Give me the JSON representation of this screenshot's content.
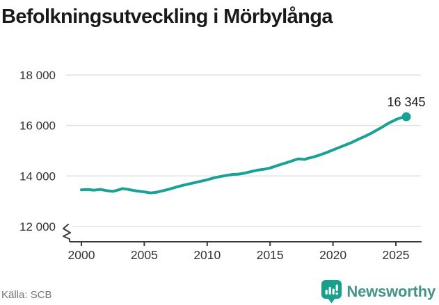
{
  "title": "Befolkningsutveckling i Mörbylånga",
  "source": {
    "text": "Källa: SCB"
  },
  "logo": {
    "text": "Newsworthy",
    "icon": "newsworthy-pin-barchart-icon"
  },
  "colors": {
    "line": "#17a295",
    "grid": "#e3e3e3",
    "axis": "#3a3a3a",
    "title_text": "#1a1a1a",
    "tick_text": "#333333",
    "end_label_text": "#1a1a1a",
    "source_text": "#757575",
    "logo_text": "#3f948b",
    "logo_icon": "#18a08c",
    "background": "#ffffff"
  },
  "chart_data": {
    "type": "line",
    "title": "Befolkningsutveckling i Mörbylånga",
    "xlabel": "",
    "ylabel": "",
    "grid": "horizontal",
    "legend": "none",
    "axis_break_below_min": true,
    "x_ticks": [
      2000,
      2005,
      2010,
      2015,
      2020,
      2025
    ],
    "x_tick_labels": [
      "2000",
      "2005",
      "2010",
      "2015",
      "2020",
      "2025"
    ],
    "y_ticks": [
      12000,
      14000,
      16000,
      18000
    ],
    "y_tick_labels": [
      "12 000",
      "14 000",
      "16 000",
      "18 000"
    ],
    "ylim": [
      12000,
      18000
    ],
    "xlim": [
      1999,
      2026.5
    ],
    "end_point": {
      "x": 2025.83,
      "y": 16345,
      "label": "16 345"
    },
    "series": [
      {
        "name": "Befolkning",
        "x": [
          2000,
          2000.5,
          2001,
          2001.5,
          2002,
          2002.5,
          2003,
          2003.25,
          2003.75,
          2004,
          2004.5,
          2005,
          2005.5,
          2006,
          2006.5,
          2007,
          2007.5,
          2008,
          2008.5,
          2009,
          2009.5,
          2010,
          2010.5,
          2011,
          2011.5,
          2012,
          2012.5,
          2013,
          2013.5,
          2014,
          2014.5,
          2015,
          2015.5,
          2016,
          2016.5,
          2017,
          2017.25,
          2017.75,
          2018,
          2018.5,
          2019,
          2019.5,
          2020,
          2020.5,
          2021,
          2021.5,
          2022,
          2022.5,
          2023,
          2023.5,
          2024,
          2024.25,
          2024.5,
          2024.75,
          2025,
          2025.25,
          2025.5,
          2025.83
        ],
        "y": [
          13450,
          13465,
          13440,
          13470,
          13420,
          13390,
          13455,
          13500,
          13465,
          13440,
          13400,
          13370,
          13330,
          13360,
          13420,
          13480,
          13555,
          13620,
          13680,
          13735,
          13795,
          13850,
          13920,
          13975,
          14020,
          14060,
          14075,
          14115,
          14175,
          14230,
          14265,
          14315,
          14400,
          14480,
          14555,
          14640,
          14680,
          14655,
          14700,
          14760,
          14840,
          14930,
          15030,
          15130,
          15230,
          15330,
          15450,
          15560,
          15680,
          15820,
          15960,
          16040,
          16110,
          16170,
          16230,
          16280,
          16320,
          16345
        ]
      }
    ]
  }
}
